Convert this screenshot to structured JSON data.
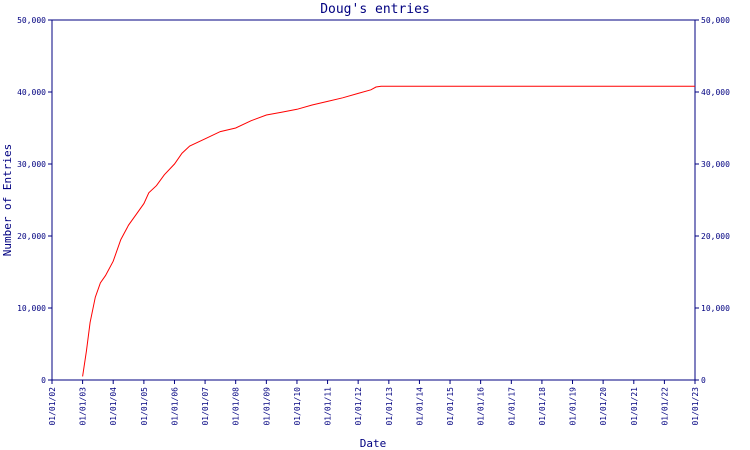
{
  "chart_data": {
    "type": "line",
    "title": "Doug's entries",
    "xlabel": "Date",
    "ylabel": "Number of Entries",
    "ylim": [
      0,
      50000
    ],
    "y_ticks": [
      0,
      10000,
      20000,
      30000,
      40000,
      50000
    ],
    "y_tick_labels": [
      "0",
      "10,000",
      "20,000",
      "30,000",
      "40,000",
      "50,000"
    ],
    "x_ticks": [
      "2002-01-01",
      "2003-01-01",
      "2004-01-01",
      "2005-01-01",
      "2006-01-01",
      "2007-01-01",
      "2008-01-01",
      "2009-01-01",
      "2010-01-01",
      "2011-01-01",
      "2012-01-01",
      "2013-01-01",
      "2014-01-01",
      "2015-01-01",
      "2016-01-01",
      "2017-01-01",
      "2018-01-01",
      "2019-01-01",
      "2020-01-01",
      "2021-01-01",
      "2022-01-01",
      "2023-01-01"
    ],
    "x_tick_labels": [
      "01/01/02",
      "01/01/03",
      "01/01/04",
      "01/01/05",
      "01/01/06",
      "01/01/07",
      "01/01/08",
      "01/01/09",
      "01/01/10",
      "01/01/11",
      "01/01/12",
      "01/01/13",
      "01/01/14",
      "01/01/15",
      "01/01/16",
      "01/01/17",
      "01/01/18",
      "01/01/19",
      "01/01/20",
      "01/01/21",
      "01/01/22",
      "01/01/23"
    ],
    "xlim": [
      "2002-01-01",
      "2023-01-01"
    ],
    "grid": false,
    "line_color": "#ff0000",
    "axis_color": "#000080",
    "series": [
      {
        "x": [
          "2003-01-01",
          "2003-02-15",
          "2003-04-01",
          "2003-06-01",
          "2003-08-01",
          "2003-10-01",
          "2004-01-01",
          "2004-04-01",
          "2004-07-01",
          "2004-10-01",
          "2005-01-01",
          "2005-03-01",
          "2005-06-01",
          "2005-09-01",
          "2006-01-01",
          "2006-04-01",
          "2006-07-01",
          "2007-01-01",
          "2007-07-01",
          "2008-01-01",
          "2008-07-01",
          "2009-01-01",
          "2009-07-01",
          "2010-01-01",
          "2010-07-01",
          "2011-01-01",
          "2011-07-01",
          "2012-01-01",
          "2012-06-01",
          "2012-08-01",
          "2012-10-01",
          "2023-01-01"
        ],
        "values": [
          500,
          4000,
          8000,
          11500,
          13500,
          14500,
          16500,
          19500,
          21500,
          23000,
          24500,
          26000,
          27000,
          28500,
          30000,
          31500,
          32500,
          33500,
          34500,
          35000,
          36000,
          36800,
          37200,
          37600,
          38200,
          38700,
          39200,
          39800,
          40300,
          40700,
          40800,
          40800
        ]
      }
    ]
  }
}
